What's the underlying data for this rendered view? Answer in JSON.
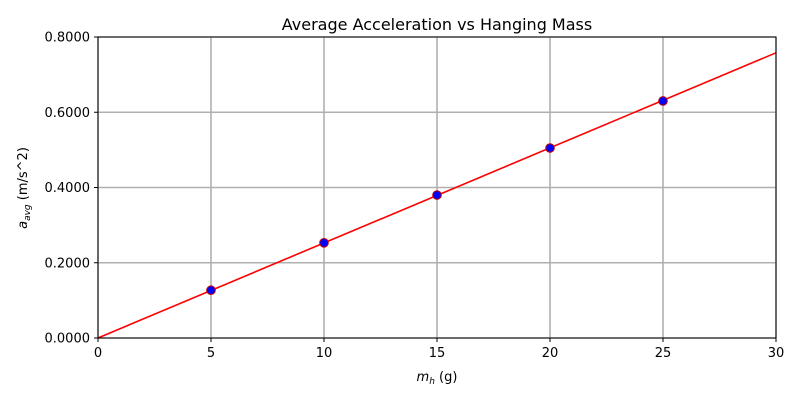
{
  "chart_data": {
    "type": "scatter",
    "title": "Average Acceleration vs Hanging Mass",
    "xlabel": {
      "base": "m",
      "sub": "h",
      "rest": " (g)"
    },
    "ylabel": {
      "base": "a",
      "sub": "avg",
      "rest": " (m/s^2)"
    },
    "xlim": [
      0,
      30
    ],
    "ylim": [
      0,
      0.8
    ],
    "xticks": [
      0,
      5,
      10,
      15,
      20,
      25,
      30
    ],
    "yticks": [
      0,
      0.2,
      0.4,
      0.6,
      0.8
    ],
    "ytick_decimals": 4,
    "grid": true,
    "series": [
      {
        "kind": "points",
        "color": "#0000ff",
        "edge_color": "#c00000",
        "x": [
          5,
          10,
          15,
          20,
          25
        ],
        "y": [
          0.127,
          0.253,
          0.38,
          0.505,
          0.63
        ]
      },
      {
        "kind": "fit-line",
        "color": "#ff0000",
        "x": [
          0,
          30
        ],
        "y": [
          0.0,
          0.758
        ]
      }
    ]
  }
}
